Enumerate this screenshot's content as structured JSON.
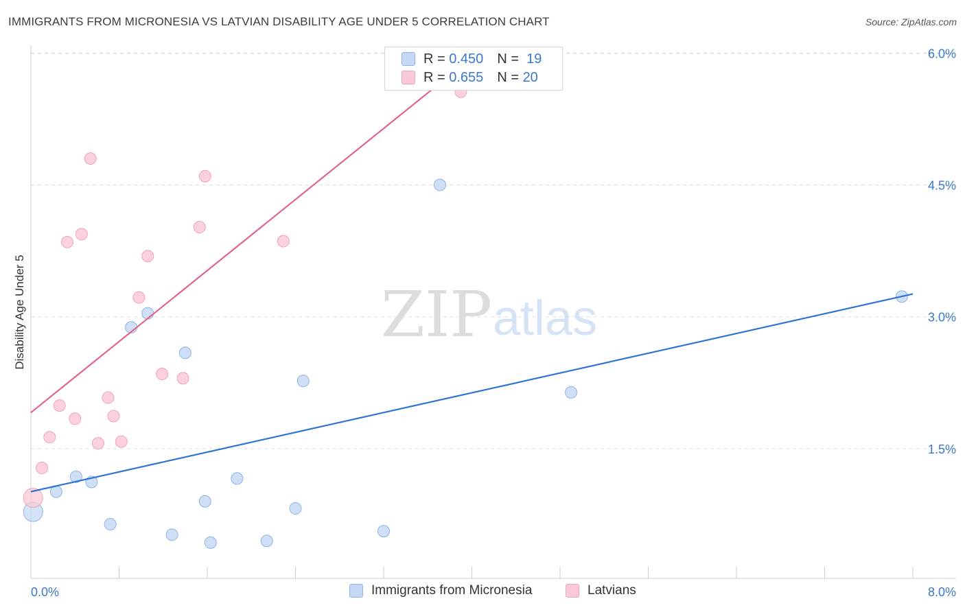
{
  "title": "IMMIGRANTS FROM MICRONESIA VS LATVIAN DISABILITY AGE UNDER 5 CORRELATION CHART",
  "source": "Source: ZipAtlas.com",
  "watermark": {
    "zip": "ZIP",
    "atlas": "atlas"
  },
  "legend": {
    "series1": {
      "r_label": "R =",
      "r_value": "0.450",
      "n_label": "N =",
      "n_value": "19"
    },
    "series2": {
      "r_label": "R =",
      "r_value": "0.655",
      "n_label": "N =",
      "n_value": "20"
    }
  },
  "colors": {
    "blue_fill": "#c5d9f5",
    "blue_stroke": "#8fb3e3",
    "blue_line": "#2f74d0",
    "pink_fill": "#f9c9d6",
    "pink_stroke": "#efa3b8",
    "pink_line": "#e0648c",
    "axis_label": "#3a78c9",
    "grid": "#dddddd"
  },
  "chart_data": {
    "type": "scatter",
    "title": "IMMIGRANTS FROM MICRONESIA VS LATVIAN DISABILITY AGE UNDER 5 CORRELATION CHART",
    "xlabel": "",
    "ylabel": "Disability Age Under 5",
    "xlim": [
      0,
      8.0
    ],
    "ylim": [
      0,
      6.2
    ],
    "x_tick_labels": [
      "0.0%",
      "8.0%"
    ],
    "y_ticks": [
      1.5,
      3.0,
      4.5,
      6.0
    ],
    "y_tick_labels": [
      "1.5%",
      "3.0%",
      "4.5%",
      "6.0%"
    ],
    "grid": true,
    "legend_position": "top-center",
    "series": [
      {
        "name": "Immigrants from Micronesia",
        "color": "blue",
        "points": [
          {
            "x": 0.02,
            "y": 0.78,
            "big": true
          },
          {
            "x": 0.23,
            "y": 1.01
          },
          {
            "x": 0.41,
            "y": 1.18
          },
          {
            "x": 0.55,
            "y": 1.12
          },
          {
            "x": 0.72,
            "y": 0.64
          },
          {
            "x": 0.91,
            "y": 2.88
          },
          {
            "x": 1.06,
            "y": 3.04
          },
          {
            "x": 1.28,
            "y": 0.52
          },
          {
            "x": 1.4,
            "y": 2.59
          },
          {
            "x": 1.58,
            "y": 0.9
          },
          {
            "x": 1.63,
            "y": 0.43
          },
          {
            "x": 1.87,
            "y": 1.16
          },
          {
            "x": 2.14,
            "y": 0.45
          },
          {
            "x": 2.4,
            "y": 0.82
          },
          {
            "x": 2.47,
            "y": 2.27
          },
          {
            "x": 3.2,
            "y": 0.56
          },
          {
            "x": 3.71,
            "y": 4.5
          },
          {
            "x": 4.9,
            "y": 2.14
          },
          {
            "x": 7.9,
            "y": 3.23
          }
        ],
        "trend": {
          "x": [
            0.0,
            8.0
          ],
          "y": [
            1.01,
            3.26
          ]
        }
      },
      {
        "name": "Latvians",
        "color": "pink",
        "points": [
          {
            "x": 0.02,
            "y": 0.94,
            "big": true
          },
          {
            "x": 0.1,
            "y": 1.28
          },
          {
            "x": 0.17,
            "y": 1.63
          },
          {
            "x": 0.26,
            "y": 1.99
          },
          {
            "x": 0.33,
            "y": 3.85
          },
          {
            "x": 0.4,
            "y": 1.84
          },
          {
            "x": 0.46,
            "y": 3.94
          },
          {
            "x": 0.54,
            "y": 4.8
          },
          {
            "x": 0.61,
            "y": 1.56
          },
          {
            "x": 0.7,
            "y": 2.08
          },
          {
            "x": 0.75,
            "y": 1.87
          },
          {
            "x": 0.82,
            "y": 1.58
          },
          {
            "x": 0.98,
            "y": 3.22
          },
          {
            "x": 1.06,
            "y": 3.69
          },
          {
            "x": 1.19,
            "y": 2.35
          },
          {
            "x": 1.38,
            "y": 2.3
          },
          {
            "x": 1.53,
            "y": 4.02
          },
          {
            "x": 1.58,
            "y": 4.6
          },
          {
            "x": 2.29,
            "y": 3.86
          },
          {
            "x": 3.9,
            "y": 5.56
          }
        ],
        "trend": {
          "x": [
            0.0,
            3.9
          ],
          "y": [
            1.91,
            5.85
          ]
        }
      }
    ]
  }
}
